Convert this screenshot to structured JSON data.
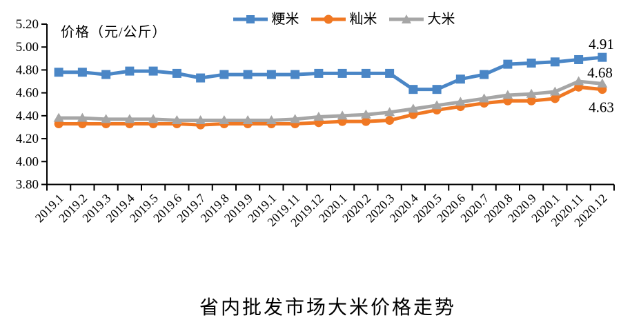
{
  "page": {
    "background": "#ffffff"
  },
  "chart_data": {
    "type": "line",
    "title": "省内批发市场大米价格走势",
    "y_axis_label": "价格（元/公斤）",
    "ylim": [
      3.8,
      5.2
    ],
    "y_tick_step": 0.2,
    "y_ticks": [
      "5.20",
      "5.00",
      "4.80",
      "4.60",
      "4.40",
      "4.20",
      "4.00",
      "3.80"
    ],
    "grid": false,
    "legend_position": "top-center",
    "axis_color": "#000000",
    "categories": [
      "2019.1",
      "2019.2",
      "2019.3",
      "2019.4",
      "2019.5",
      "2019.6",
      "2019.7",
      "2019.8",
      "2019.9",
      "2019.1",
      "2019.11",
      "2019.12",
      "2020.1",
      "2020.2",
      "2020.3",
      "2020.4",
      "2020.5",
      "2020.6",
      "2020.7",
      "2020.8",
      "2020.9",
      "2020.1",
      "2020.11",
      "2020.12"
    ],
    "series": [
      {
        "name": "粳米",
        "color": "#4A86C6",
        "marker": "square",
        "end_label": "4.91",
        "values": [
          4.78,
          4.78,
          4.76,
          4.79,
          4.79,
          4.77,
          4.73,
          4.76,
          4.76,
          4.76,
          4.76,
          4.77,
          4.77,
          4.77,
          4.77,
          4.63,
          4.63,
          4.72,
          4.76,
          4.85,
          4.86,
          4.87,
          4.89,
          4.91
        ]
      },
      {
        "name": "籼米",
        "color": "#F07823",
        "marker": "circle",
        "end_label": "4.63",
        "values": [
          4.33,
          4.33,
          4.33,
          4.33,
          4.33,
          4.33,
          4.32,
          4.33,
          4.33,
          4.33,
          4.33,
          4.34,
          4.35,
          4.35,
          4.36,
          4.41,
          4.45,
          4.48,
          4.51,
          4.53,
          4.53,
          4.55,
          4.65,
          4.63
        ]
      },
      {
        "name": "大米",
        "color": "#A6A6A6",
        "marker": "triangle",
        "end_label": "4.68",
        "values": [
          4.38,
          4.38,
          4.37,
          4.37,
          4.37,
          4.36,
          4.36,
          4.36,
          4.36,
          4.36,
          4.37,
          4.39,
          4.4,
          4.41,
          4.43,
          4.46,
          4.49,
          4.52,
          4.55,
          4.58,
          4.59,
          4.61,
          4.7,
          4.68
        ]
      }
    ]
  }
}
